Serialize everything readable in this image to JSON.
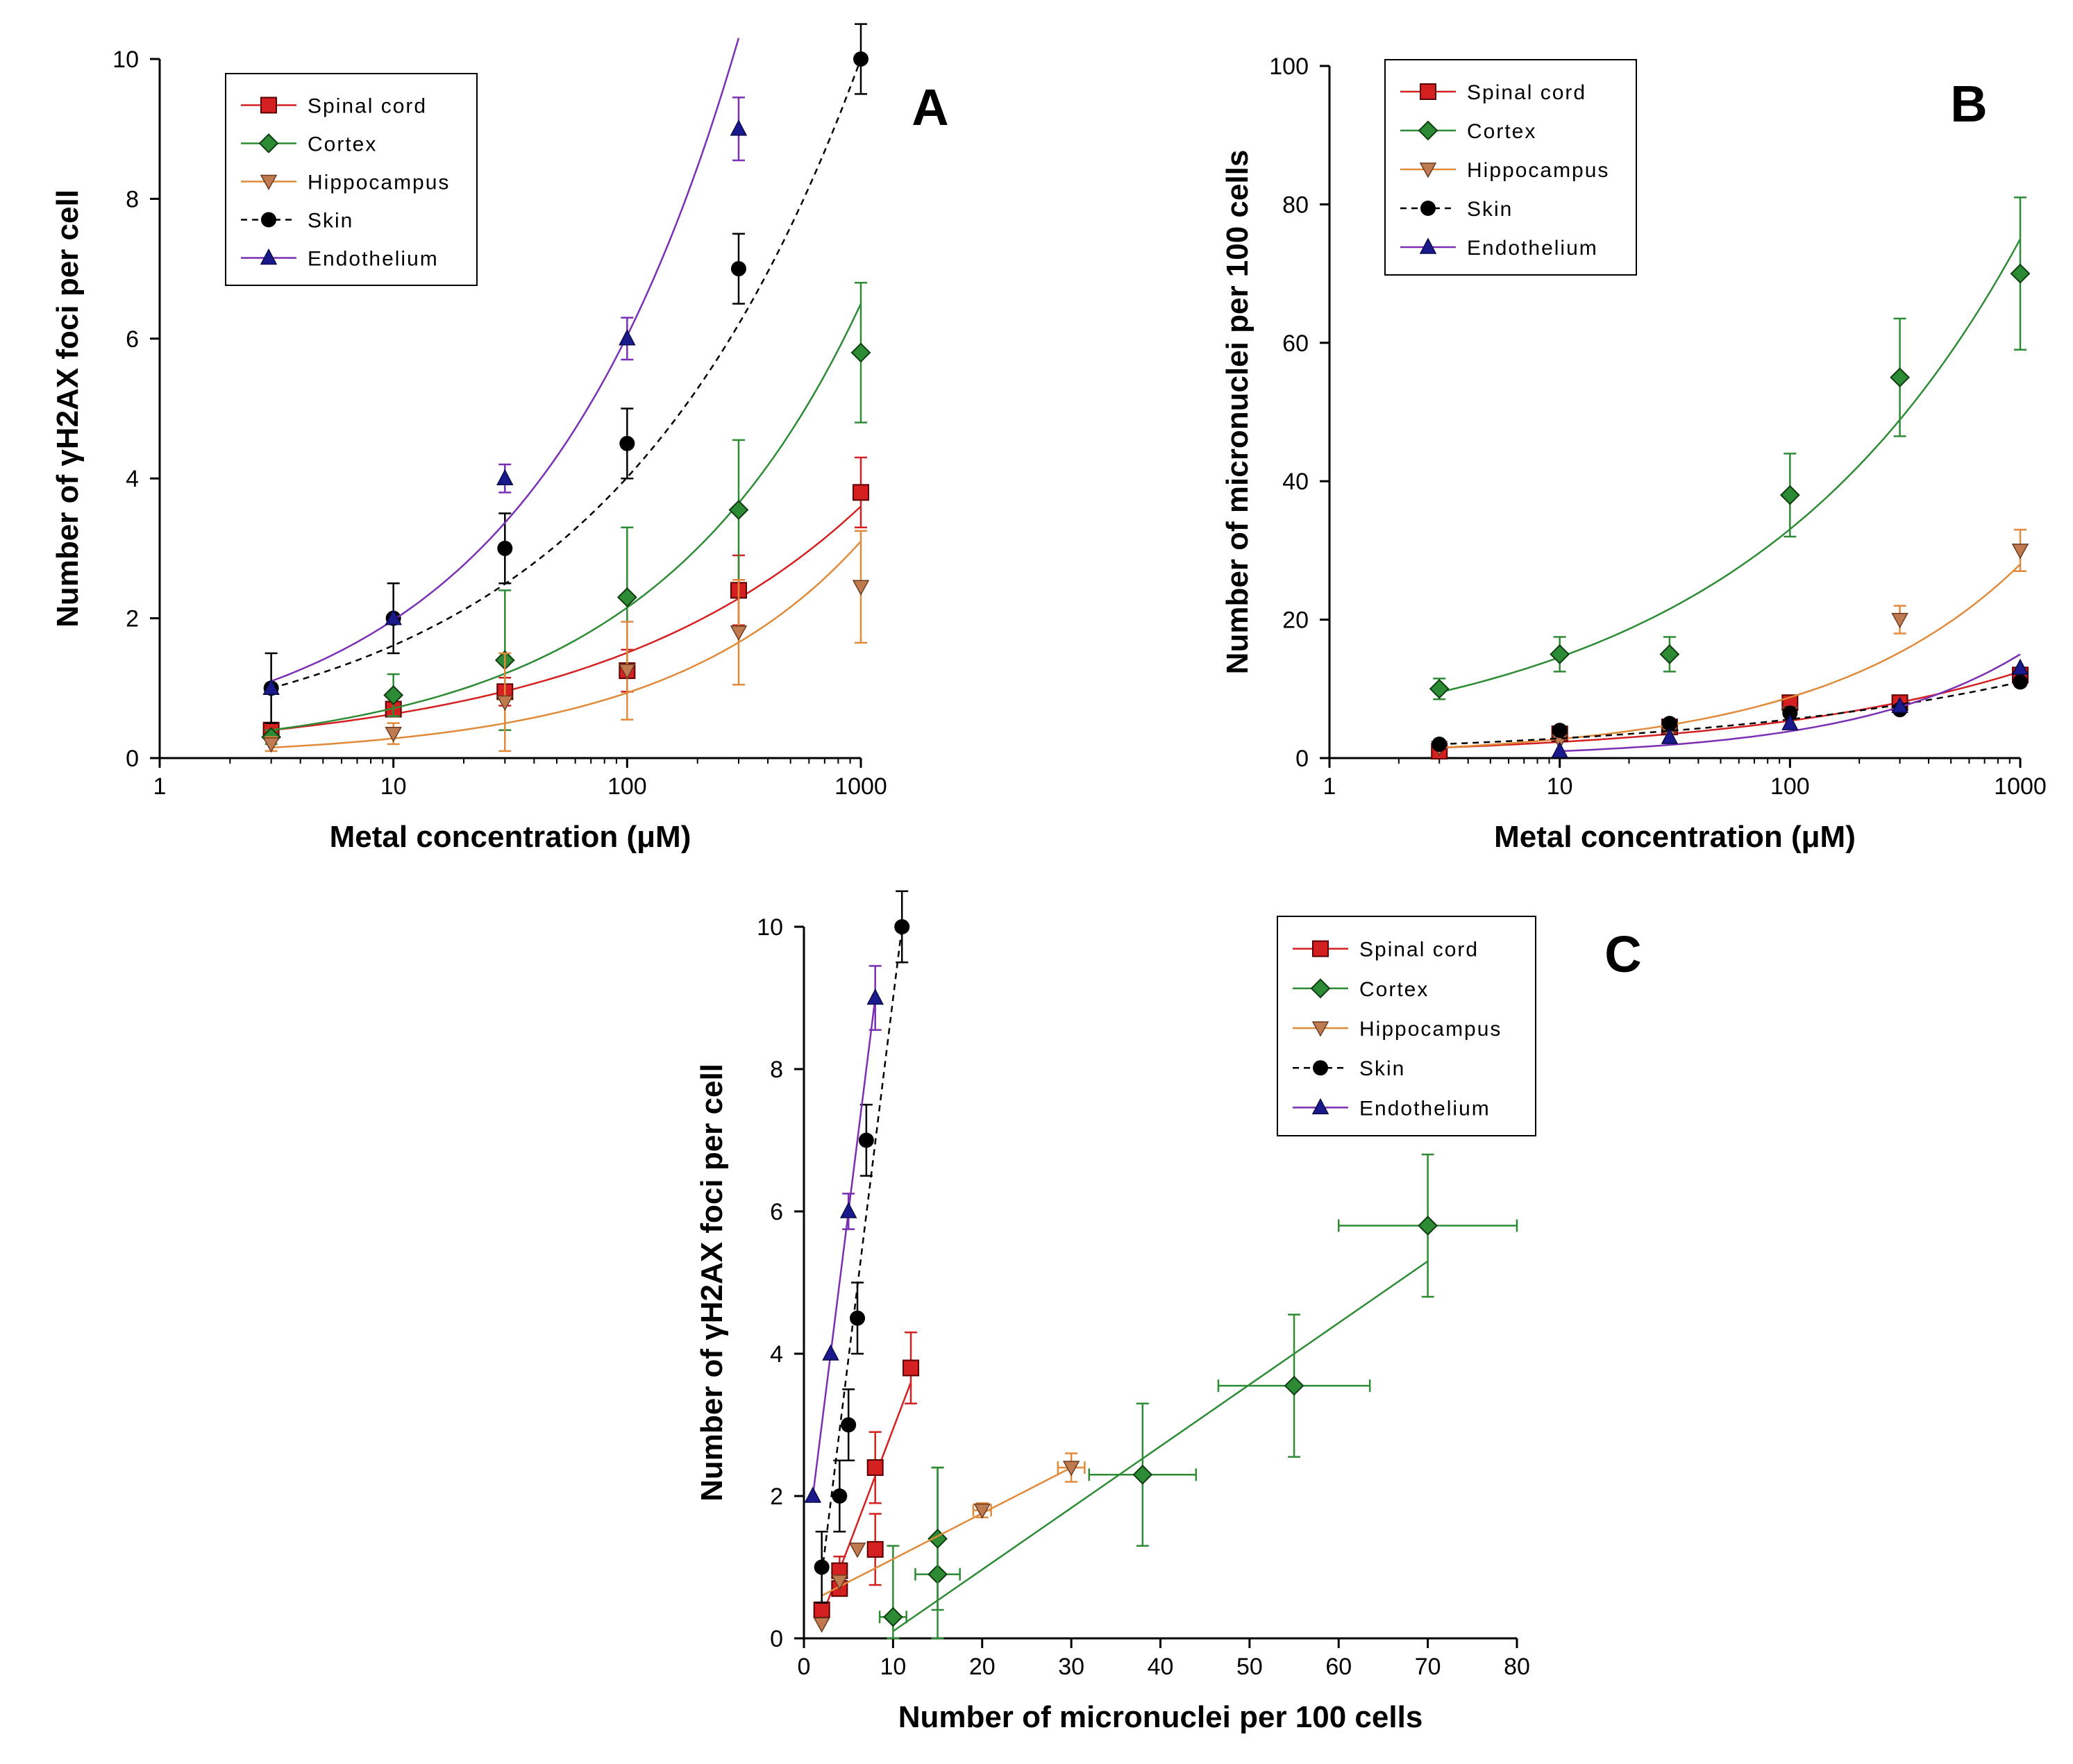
{
  "colors": {
    "spinal": "#d42020",
    "cortex": "#2e8b35",
    "hippo": "#e08a3a",
    "skin": "#000000",
    "endo": "#7b2fb5",
    "endo_marker": "#1a1a8c",
    "hippo_marker": "#c07a50"
  },
  "legend": [
    "Spinal cord",
    "Cortex",
    "Hippocampus",
    "Skin",
    "Endothelium"
  ],
  "chart_data": [
    {
      "panel": "A",
      "type": "scatter",
      "xscale": "log",
      "xlabel": "Metal concentration (μM)",
      "ylabel": "Number of γH2AX foci per cell",
      "xlim": [
        1,
        1000
      ],
      "ylim": [
        0,
        10
      ],
      "xticks": [
        "1",
        "10",
        "100",
        "1000"
      ],
      "yticks": [
        "0",
        "2",
        "4",
        "6",
        "8",
        "10"
      ],
      "legend_position": "top-left",
      "series": [
        {
          "name": "Spinal cord",
          "x": [
            3,
            10,
            30,
            100,
            300,
            1000
          ],
          "y": [
            0.4,
            0.7,
            0.95,
            1.25,
            2.4,
            3.8
          ],
          "err": [
            0.1,
            0.1,
            0.2,
            0.3,
            0.5,
            0.5
          ],
          "fit": [
            0.4,
            3.6
          ]
        },
        {
          "name": "Cortex",
          "x": [
            3,
            10,
            30,
            100,
            300,
            1000
          ],
          "y": [
            0.3,
            0.9,
            1.4,
            2.3,
            3.55,
            5.8
          ],
          "err": [
            0.1,
            0.3,
            1.0,
            1.0,
            1.0,
            1.0
          ],
          "fit": [
            0.4,
            6.5
          ]
        },
        {
          "name": "Hippocampus",
          "x": [
            3,
            10,
            30,
            100,
            300,
            1000
          ],
          "y": [
            0.2,
            0.35,
            0.8,
            1.25,
            1.8,
            2.45
          ],
          "err": [
            0.1,
            0.15,
            0.7,
            0.7,
            0.75,
            0.8
          ],
          "fit": [
            0.15,
            3.1
          ]
        },
        {
          "name": "Skin",
          "x": [
            3,
            10,
            30,
            100,
            300,
            1000
          ],
          "y": [
            1.0,
            2.0,
            3.0,
            4.5,
            7.0,
            10.0
          ],
          "err": [
            0.5,
            0.5,
            0.5,
            0.5,
            0.5,
            0.5
          ],
          "fit": [
            1.0,
            10.0
          ]
        },
        {
          "name": "Endothelium",
          "x": [
            3,
            10,
            30,
            100,
            300
          ],
          "y": [
            1.0,
            2.0,
            4.0,
            6.0,
            9.0
          ],
          "err": [
            0.0,
            0.0,
            0.2,
            0.3,
            0.45
          ],
          "fit": [
            1.1,
            10.3
          ]
        }
      ]
    },
    {
      "panel": "B",
      "type": "scatter",
      "xscale": "log",
      "xlabel": "Metal concentration (μM)",
      "ylabel": "Number of micronuclei per 100 cells",
      "xlim": [
        1,
        1000
      ],
      "ylim": [
        0,
        100
      ],
      "xticks": [
        "1",
        "10",
        "100",
        "1000"
      ],
      "yticks": [
        "0",
        "20",
        "40",
        "60",
        "80",
        "100"
      ],
      "legend_position": "top-left",
      "series": [
        {
          "name": "Spinal cord",
          "x": [
            3,
            10,
            30,
            100,
            300,
            1000
          ],
          "y": [
            1,
            3.5,
            4.5,
            8,
            8,
            12
          ],
          "err": [
            0,
            0,
            0,
            0,
            0,
            0
          ],
          "fit": [
            1.5,
            12.5
          ]
        },
        {
          "name": "Cortex",
          "x": [
            3,
            10,
            30,
            100,
            300,
            1000
          ],
          "y": [
            10,
            15,
            15,
            38,
            55,
            70
          ],
          "err": [
            1.5,
            2.5,
            2.5,
            6,
            8.5,
            11
          ],
          "fit": [
            9.5,
            75
          ]
        },
        {
          "name": "Hippocampus",
          "x": [
            3,
            10,
            30,
            100,
            300,
            1000
          ],
          "y": [
            1.5,
            2.5,
            3.5,
            6.5,
            20,
            30
          ],
          "err": [
            0,
            0,
            0,
            0,
            2,
            3
          ],
          "fit": [
            1.5,
            28
          ]
        },
        {
          "name": "Skin",
          "x": [
            3,
            10,
            30,
            100,
            300,
            1000
          ],
          "y": [
            2,
            4,
            5,
            6.5,
            7,
            11
          ],
          "err": [
            0,
            0,
            0,
            0,
            0,
            0
          ],
          "fit": [
            2,
            11
          ]
        },
        {
          "name": "Endothelium",
          "x": [
            10,
            30,
            100,
            300,
            1000
          ],
          "y": [
            1,
            3,
            5,
            7.5,
            13
          ],
          "err": [
            0,
            0,
            0,
            0,
            0
          ],
          "fit": [
            1,
            15
          ]
        }
      ]
    },
    {
      "panel": "C",
      "type": "scatter",
      "xscale": "linear",
      "xlabel": "Number of micronuclei per 100 cells",
      "ylabel": "Number of γH2AX foci per cell",
      "xlim": [
        0,
        80
      ],
      "ylim": [
        0,
        10
      ],
      "xticks": [
        "0",
        "10",
        "20",
        "30",
        "40",
        "50",
        "60",
        "70",
        "80"
      ],
      "yticks": [
        "0",
        "2",
        "4",
        "6",
        "8",
        "10"
      ],
      "legend_position": "top-right",
      "series": [
        {
          "name": "Spinal cord",
          "x": [
            2,
            4,
            4,
            8,
            8,
            12
          ],
          "y": [
            0.4,
            0.7,
            0.95,
            1.25,
            2.4,
            3.8
          ],
          "yerr": [
            0.1,
            0.1,
            0.2,
            0.5,
            0.5,
            0.5
          ],
          "xerr": [
            0,
            0,
            0,
            0,
            0,
            0
          ],
          "fit": [
            [
              2,
              0.3
            ],
            [
              12,
              3.6
            ]
          ]
        },
        {
          "name": "Cortex",
          "x": [
            10,
            15,
            15,
            38,
            55,
            70
          ],
          "y": [
            0.3,
            0.9,
            1.4,
            2.3,
            3.55,
            5.8
          ],
          "yerr": [
            1.0,
            1.5,
            1.0,
            1.0,
            1.0,
            1.0
          ],
          "xerr": [
            1.5,
            2.5,
            0,
            6,
            8.5,
            10
          ],
          "fit": [
            [
              10,
              0.1
            ],
            [
              70,
              5.3
            ]
          ]
        },
        {
          "name": "Hippocampus",
          "x": [
            2,
            4,
            6,
            20,
            30
          ],
          "y": [
            0.2,
            0.8,
            1.25,
            1.8,
            2.4
          ],
          "yerr": [
            0,
            0,
            0,
            0.1,
            0.2
          ],
          "xerr": [
            0,
            0,
            0,
            1,
            1.5
          ],
          "fit": [
            [
              2,
              0.6
            ],
            [
              30,
              2.4
            ]
          ]
        },
        {
          "name": "Skin",
          "x": [
            2,
            4,
            5,
            6,
            7,
            11
          ],
          "y": [
            1.0,
            2.0,
            3.0,
            4.5,
            7.0,
            10.0
          ],
          "yerr": [
            0.5,
            0.5,
            0.5,
            0.5,
            0.5,
            0.5
          ],
          "xerr": [
            0,
            0,
            0,
            0,
            0,
            0
          ],
          "fit": [
            [
              2,
              0.9
            ],
            [
              11,
              10
            ]
          ]
        },
        {
          "name": "Endothelium",
          "x": [
            1,
            3,
            5,
            8
          ],
          "y": [
            2.0,
            4.0,
            6.0,
            9.0
          ],
          "yerr": [
            0,
            0,
            0.25,
            0.45
          ],
          "xerr": [
            0,
            0,
            0,
            0
          ],
          "fit": [
            [
              1,
              2.0
            ],
            [
              8,
              9.0
            ]
          ]
        }
      ]
    }
  ]
}
